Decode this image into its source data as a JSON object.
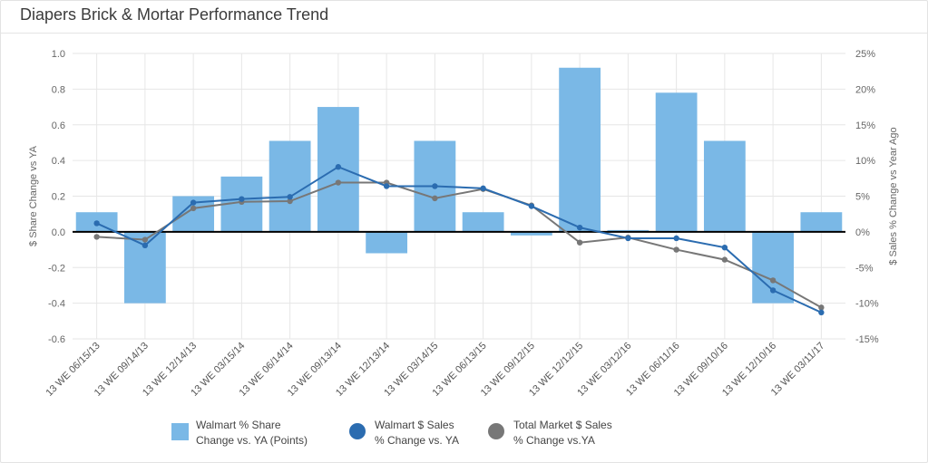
{
  "title": "Diapers Brick & Mortar Performance Trend",
  "chart_data": {
    "type": "bar+line",
    "categories": [
      "13 WE 06/15/13",
      "13 WE 09/14/13",
      "13 WE 12/14/13",
      "13 WE 03/15/14",
      "13 WE 06/14/14",
      "13 WE 09/13/14",
      "13 WE 12/13/14",
      "13 WE 03/14/15",
      "13 WE 06/13/15",
      "13 WE 09/12/15",
      "13 WE 12/12/15",
      "13 WE 03/12/16",
      "13 WE 06/11/16",
      "13 WE 09/10/16",
      "13 WE 12/10/16",
      "13 WE 03/11/17"
    ],
    "ylabel_left": "$ Share Change vs YA",
    "ylabel_right": "$ Sales % Change vs Year Ago",
    "ylim_left": [
      -0.6,
      1.0
    ],
    "yticks_left": [
      "1.0",
      "0.8",
      "0.6",
      "0.4",
      "0.2",
      "0.0",
      "-0.2",
      "-0.4",
      "-0.6"
    ],
    "ylim_right": [
      -15,
      25
    ],
    "yticks_right": [
      "25%",
      "20%",
      "15%",
      "10%",
      "5%",
      "0%",
      "-5%",
      "-10%",
      "-15%"
    ],
    "grid": true,
    "legend_position": "bottom",
    "series": [
      {
        "name": "Walmart % Share\nChange vs. YA (Points)",
        "kind": "bar",
        "axis": "left",
        "color": "#7ab8e6",
        "values": [
          0.11,
          -0.4,
          0.2,
          0.31,
          0.51,
          0.7,
          -0.12,
          0.51,
          0.11,
          -0.02,
          0.92,
          0.01,
          0.78,
          0.51,
          -0.4,
          0.11
        ]
      },
      {
        "name": "Walmart $ Sales\n% Change vs. YA",
        "kind": "line",
        "axis": "right",
        "color": "#2b6cb0",
        "values": [
          1.2,
          -1.9,
          4.1,
          4.6,
          4.9,
          9.1,
          6.4,
          6.4,
          6.1,
          3.6,
          0.6,
          -0.9,
          -0.9,
          -2.2,
          -8.2,
          -11.3
        ]
      },
      {
        "name": "Total Market $ Sales\n% Change vs.YA",
        "kind": "line",
        "axis": "right",
        "color": "#777777",
        "values": [
          -0.7,
          -1.1,
          3.3,
          4.2,
          4.3,
          6.9,
          6.9,
          4.7,
          6.0,
          3.7,
          -1.5,
          -0.8,
          -2.5,
          -3.9,
          -6.8,
          -10.6
        ]
      }
    ]
  }
}
